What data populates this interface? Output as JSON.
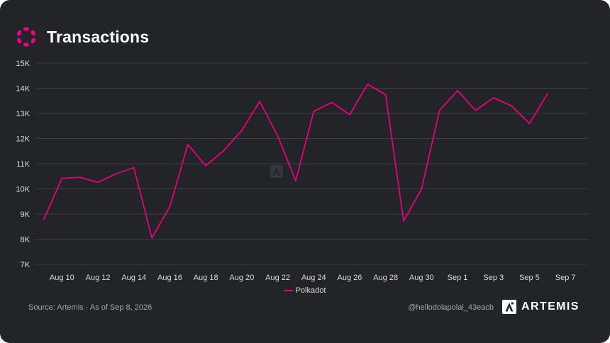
{
  "header": {
    "title": "Transactions",
    "logo_icon": "polkadot-logo-icon",
    "accent_color": "#e6007a"
  },
  "footer": {
    "source": "Source: Artemis · As of Sep 8, 2026",
    "handle": "@hellodolapolai_43eacb",
    "brand": "ARTEMIS",
    "brand_icon": "artemis-logo-icon"
  },
  "legend": {
    "label": "Polkadot",
    "color": "#e6007a"
  },
  "chart_data": {
    "type": "line",
    "title": "Transactions",
    "xlabel": "",
    "ylabel": "",
    "ylim": [
      7000,
      15000
    ],
    "y_ticks": [
      7000,
      8000,
      9000,
      10000,
      11000,
      12000,
      13000,
      14000,
      15000
    ],
    "y_tick_labels": [
      "7K",
      "8K",
      "9K",
      "10K",
      "11K",
      "12K",
      "13K",
      "14K",
      "15K"
    ],
    "x_tick_labels": [
      "Aug 10",
      "Aug 12",
      "Aug 14",
      "Aug 16",
      "Aug 18",
      "Aug 20",
      "Aug 22",
      "Aug 24",
      "Aug 26",
      "Aug 28",
      "Aug 30",
      "Sep 1",
      "Sep 3",
      "Sep 5",
      "Sep 7"
    ],
    "grid": "horizontal",
    "legend_position": "bottom-center",
    "series": [
      {
        "name": "Polkadot",
        "color": "#e6007a",
        "x": [
          "Aug 9",
          "Aug 10",
          "Aug 11",
          "Aug 12",
          "Aug 13",
          "Aug 14",
          "Aug 15",
          "Aug 16",
          "Aug 17",
          "Aug 18",
          "Aug 19",
          "Aug 20",
          "Aug 21",
          "Aug 22",
          "Aug 23",
          "Aug 24",
          "Aug 25",
          "Aug 26",
          "Aug 27",
          "Aug 28",
          "Aug 29",
          "Aug 30",
          "Aug 31",
          "Sep 1",
          "Sep 2",
          "Sep 3",
          "Sep 4",
          "Sep 5",
          "Sep 6"
        ],
        "values": [
          8800,
          10420,
          10460,
          10260,
          10600,
          10840,
          8050,
          9300,
          11760,
          10920,
          11520,
          12320,
          13480,
          12100,
          10320,
          13080,
          13440,
          12950,
          14160,
          13740,
          8720,
          10000,
          13120,
          13900,
          13120,
          13620,
          13300,
          12600,
          13780
        ]
      }
    ]
  }
}
